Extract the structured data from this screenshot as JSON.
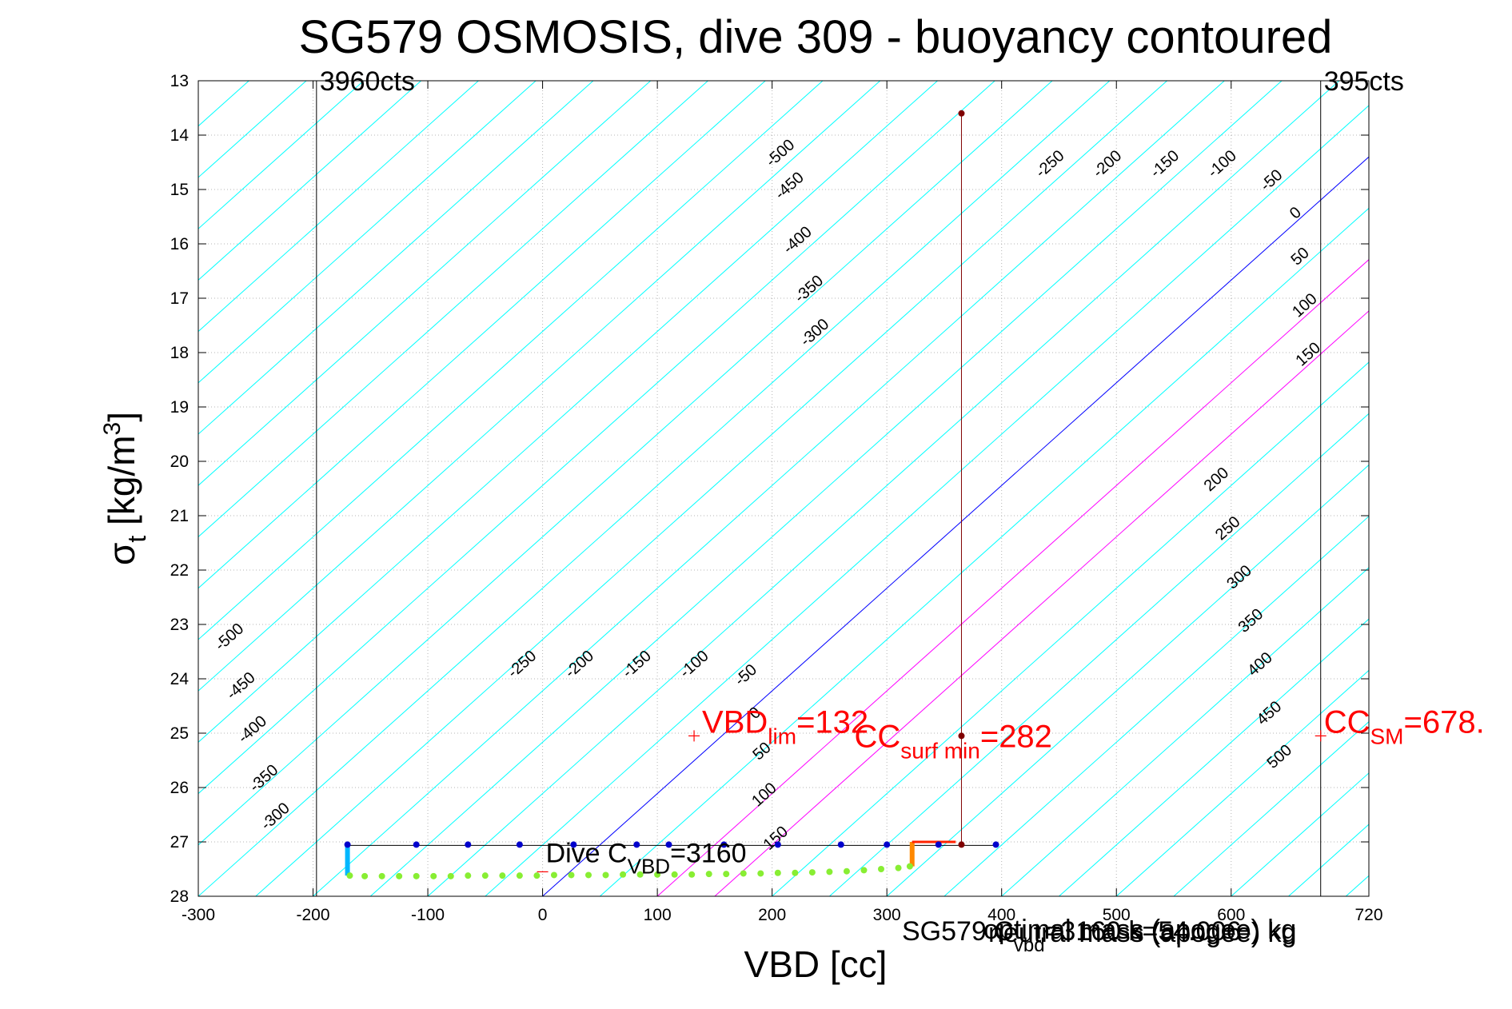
{
  "chart_data": {
    "type": "line",
    "title": "SG579 OSMOSIS, dive 309 - buoyancy contoured",
    "xlabel": "VBD [cc]",
    "ylabel": {
      "main": "σ",
      "sub": "t",
      "unit": " [kg/m",
      "sup": "3",
      "end": "]"
    },
    "xlim": [
      -300,
      720
    ],
    "ylim": [
      13,
      28
    ],
    "y_reversed": true,
    "grid": true,
    "x_ticks": [
      -300,
      -200,
      -100,
      0,
      100,
      200,
      300,
      400,
      500,
      600,
      720
    ],
    "x_tick_labels": [
      "-300",
      "-200",
      "-100",
      "0",
      "100",
      "200",
      "300",
      "400",
      "500",
      "600",
      "720"
    ],
    "y_ticks": [
      13,
      14,
      15,
      16,
      17,
      18,
      19,
      20,
      21,
      22,
      23,
      24,
      25,
      26,
      27,
      28
    ],
    "y_tick_labels": [
      "13",
      "14",
      "15",
      "16",
      "17",
      "18",
      "19",
      "20",
      "21",
      "22",
      "23",
      "24",
      "25",
      "26",
      "27",
      "28"
    ],
    "contours": {
      "zero_line": {
        "x": [
          0,
          720
        ],
        "y": [
          28,
          14.4
        ]
      },
      "offsets_cc": [
        -1100,
        -1050,
        -1000,
        -950,
        -900,
        -850,
        -800,
        -750,
        -700,
        -650,
        -600,
        -550,
        -500,
        -450,
        -400,
        -350,
        -300,
        -250,
        -200,
        -150,
        -100,
        -50,
        0,
        50,
        100,
        150,
        200,
        250,
        300,
        350,
        400,
        450,
        500,
        550,
        600,
        650,
        700
      ],
      "colors": {
        "zero": "#0000ff",
        "magenta": "#ff00ff",
        "cyan": "#00ffff"
      },
      "labels": [
        {
          "text": "-500",
          "x": 210,
          "y": 14.4
        },
        {
          "text": "-450",
          "x": 218,
          "y": 15.0
        },
        {
          "text": "-400",
          "x": 225,
          "y": 16.0
        },
        {
          "text": "-350",
          "x": 235,
          "y": 16.9
        },
        {
          "text": "-300",
          "x": 240,
          "y": 17.7
        },
        {
          "text": "-250",
          "x": 445,
          "y": 14.6
        },
        {
          "text": "-200",
          "x": 495,
          "y": 14.6
        },
        {
          "text": "-150",
          "x": 545,
          "y": 14.6
        },
        {
          "text": "-100",
          "x": 595,
          "y": 14.6
        },
        {
          "text": "-50",
          "x": 638,
          "y": 14.9
        },
        {
          "text": "0",
          "x": 659,
          "y": 15.5
        },
        {
          "text": "50",
          "x": 663,
          "y": 16.3
        },
        {
          "text": "100",
          "x": 667,
          "y": 17.2
        },
        {
          "text": "150",
          "x": 670,
          "y": 18.1
        },
        {
          "text": "-500",
          "x": -270,
          "y": 23.3
        },
        {
          "text": "-450",
          "x": -260,
          "y": 24.2
        },
        {
          "text": "-400",
          "x": -250,
          "y": 25.0
        },
        {
          "text": "-350",
          "x": -240,
          "y": 25.9
        },
        {
          "text": "-300",
          "x": -230,
          "y": 26.6
        },
        {
          "text": "-250",
          "x": -15,
          "y": 23.8
        },
        {
          "text": "-200",
          "x": 35,
          "y": 23.8
        },
        {
          "text": "-150",
          "x": 85,
          "y": 23.8
        },
        {
          "text": "-100",
          "x": 135,
          "y": 23.8
        },
        {
          "text": "-50",
          "x": 180,
          "y": 24.0
        },
        {
          "text": "0",
          "x": 188,
          "y": 24.7
        },
        {
          "text": "50",
          "x": 194,
          "y": 25.4
        },
        {
          "text": "100",
          "x": 196,
          "y": 26.2
        },
        {
          "text": "150",
          "x": 206,
          "y": 27.0
        },
        {
          "text": "200",
          "x": 590,
          "y": 20.4
        },
        {
          "text": "250",
          "x": 600,
          "y": 21.3
        },
        {
          "text": "300",
          "x": 610,
          "y": 22.2
        },
        {
          "text": "350",
          "x": 620,
          "y": 23.0
        },
        {
          "text": "400",
          "x": 628,
          "y": 23.8
        },
        {
          "text": "450",
          "x": 636,
          "y": 24.7
        },
        {
          "text": "500",
          "x": 645,
          "y": 25.5
        }
      ]
    },
    "vertical_limits": [
      {
        "x": -197,
        "label": "3960cts"
      },
      {
        "x": 678,
        "label": "395cts"
      }
    ],
    "series": [
      {
        "kind": "dive_points",
        "x": [
          -170,
          -110,
          -65,
          -20,
          27,
          82,
          110,
          158,
          205,
          260,
          300,
          345,
          395
        ],
        "y": [
          27.05,
          27.05,
          27.05,
          27.05,
          27.05,
          27.05,
          27.05,
          27.05,
          27.05,
          27.05,
          27.05,
          27.05,
          27.05
        ],
        "color": "#0000cc"
      },
      {
        "kind": "climb_points",
        "x": [
          -168,
          -155,
          -140,
          -125,
          -110,
          -95,
          -80,
          -65,
          -50,
          -35,
          -20,
          -5,
          10,
          25,
          40,
          55,
          70,
          85,
          100,
          115,
          130,
          145,
          160,
          175,
          190,
          205,
          220,
          235,
          250,
          265,
          280,
          295,
          310,
          320
        ],
        "y": [
          27.62,
          27.63,
          27.63,
          27.63,
          27.63,
          27.63,
          27.63,
          27.62,
          27.62,
          27.62,
          27.62,
          27.62,
          27.61,
          27.61,
          27.61,
          27.61,
          27.6,
          27.6,
          27.6,
          27.6,
          27.6,
          27.59,
          27.59,
          27.58,
          27.58,
          27.57,
          27.57,
          27.56,
          27.55,
          27.54,
          27.52,
          27.5,
          27.48,
          27.45
        ],
        "color": "#88ee33"
      },
      {
        "kind": "vbd_surface",
        "x": [
          365,
          365,
          365
        ],
        "y": [
          13.6,
          25.05,
          27.05
        ],
        "color": "#7f0000"
      }
    ],
    "annotations": {
      "vbd_min": {
        "main": "VBD",
        "sub": "lim",
        "value": "=132",
        "x": 132,
        "y": 25.05
      },
      "cc_surf_min": {
        "main": "CC",
        "sub": "surf min",
        "value": "=282",
        "x": 365,
        "y": 25.05
      },
      "cc_sm": {
        "main": "CC",
        "sub": "SM",
        "value": "=678.",
        "x": 678,
        "y": 25.05
      },
      "dive_c": {
        "main": "Dive C",
        "sub": "VBD",
        "value": "=3160",
        "x": 0,
        "y": 27.55
      },
      "mass_overlap": {
        "line1_main": "SG579 C",
        "line1_sub": "vbd",
        "line1_end": "=3160 k=54.006",
        "line2": "optimal mass (apogee) kg",
        "line3": "neutral mass (apogee) kg"
      }
    }
  }
}
